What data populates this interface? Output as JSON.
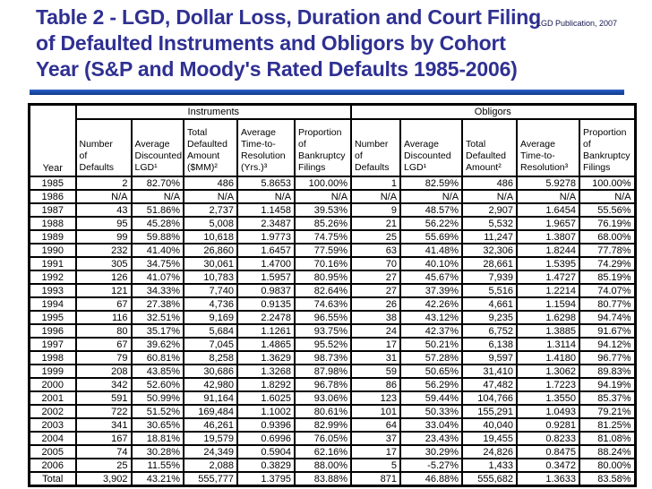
{
  "watermark": "LGD Publication, 2007",
  "title": "Table 2 - LGD, Dollar Loss, Duration and Court Filing\nof Defaulted Instruments and Obligors by Cohort\nYear (S&P and Moody's Rated Defaults 1985-2006)",
  "colors": {
    "title": "#2f3092",
    "accent_bar": "#1b4aa6",
    "table_border": "#000000"
  },
  "table": {
    "year_header": "Year",
    "groups": [
      {
        "label": "Instruments",
        "columns": [
          "Number\nof\nDefaults",
          "Average\nDiscounted\nLGD¹",
          "Total\nDefaulted\nAmount\n($MM)²",
          "Average\nTime-to-\nResolution\n(Yrs.)³",
          "Proportion\nof\nBankruptcy\nFilings"
        ]
      },
      {
        "label": "Obligors",
        "columns": [
          "Number\nof\nDefaults",
          "Average\nDiscounted\nLGD¹",
          "Total\nDefaulted\nAmount²",
          "Average\nTime-to-\nResolution³",
          "Proportion\nof\nBankruptcy\nFilings"
        ]
      }
    ],
    "rows": [
      {
        "year": "1985",
        "instruments": [
          "2",
          "82.70%",
          "486",
          "5.8653",
          "100.00%"
        ],
        "obligors": [
          "1",
          "82.59%",
          "486",
          "5.9278",
          "100.00%"
        ]
      },
      {
        "year": "1986",
        "instruments": [
          "N/A",
          "N/A",
          "N/A",
          "N/A",
          "N/A"
        ],
        "obligors": [
          "N/A",
          "N/A",
          "N/A",
          "N/A",
          "N/A"
        ]
      },
      {
        "year": "1987",
        "instruments": [
          "43",
          "51.86%",
          "2,737",
          "1.1458",
          "39.53%"
        ],
        "obligors": [
          "9",
          "48.57%",
          "2,907",
          "1.6454",
          "55.56%"
        ]
      },
      {
        "year": "1988",
        "instruments": [
          "95",
          "45.28%",
          "5,008",
          "2.3487",
          "85.26%"
        ],
        "obligors": [
          "21",
          "56.22%",
          "5,532",
          "1.9657",
          "76.19%"
        ]
      },
      {
        "year": "1989",
        "instruments": [
          "99",
          "59.88%",
          "10,618",
          "1.9773",
          "74.75%"
        ],
        "obligors": [
          "25",
          "55.69%",
          "11,247",
          "1.3807",
          "68.00%"
        ]
      },
      {
        "year": "1990",
        "instruments": [
          "232",
          "41.40%",
          "26,860",
          "1.6457",
          "77.59%"
        ],
        "obligors": [
          "63",
          "41.48%",
          "32,306",
          "1.8244",
          "77.78%"
        ]
      },
      {
        "year": "1991",
        "instruments": [
          "305",
          "34.75%",
          "30,061",
          "1.4700",
          "70.16%"
        ],
        "obligors": [
          "70",
          "40.10%",
          "28,661",
          "1.5395",
          "74.29%"
        ]
      },
      {
        "year": "1992",
        "instruments": [
          "126",
          "41.07%",
          "10,783",
          "1.5957",
          "80.95%"
        ],
        "obligors": [
          "27",
          "45.67%",
          "7,939",
          "1.4727",
          "85.19%"
        ]
      },
      {
        "year": "1993",
        "instruments": [
          "121",
          "34.33%",
          "7,740",
          "0.9837",
          "82.64%"
        ],
        "obligors": [
          "27",
          "37.39%",
          "5,516",
          "1.2214",
          "74.07%"
        ]
      },
      {
        "year": "1994",
        "instruments": [
          "67",
          "27.38%",
          "4,736",
          "0.9135",
          "74.63%"
        ],
        "obligors": [
          "26",
          "42.26%",
          "4,661",
          "1.1594",
          "80.77%"
        ]
      },
      {
        "year": "1995",
        "instruments": [
          "116",
          "32.51%",
          "9,169",
          "2.2478",
          "96.55%"
        ],
        "obligors": [
          "38",
          "43.12%",
          "9,235",
          "1.6298",
          "94.74%"
        ]
      },
      {
        "year": "1996",
        "instruments": [
          "80",
          "35.17%",
          "5,684",
          "1.1261",
          "93.75%"
        ],
        "obligors": [
          "24",
          "42.37%",
          "6,752",
          "1.3885",
          "91.67%"
        ]
      },
      {
        "year": "1997",
        "instruments": [
          "67",
          "39.62%",
          "7,045",
          "1.4865",
          "95.52%"
        ],
        "obligors": [
          "17",
          "50.21%",
          "6,138",
          "1.3114",
          "94.12%"
        ]
      },
      {
        "year": "1998",
        "instruments": [
          "79",
          "60.81%",
          "8,258",
          "1.3629",
          "98.73%"
        ],
        "obligors": [
          "31",
          "57.28%",
          "9,597",
          "1.4180",
          "96.77%"
        ]
      },
      {
        "year": "1999",
        "instruments": [
          "208",
          "43.85%",
          "30,686",
          "1.3268",
          "87.98%"
        ],
        "obligors": [
          "59",
          "50.65%",
          "31,410",
          "1.3062",
          "89.83%"
        ]
      },
      {
        "year": "2000",
        "instruments": [
          "342",
          "52.60%",
          "42,980",
          "1.8292",
          "96.78%"
        ],
        "obligors": [
          "86",
          "56.29%",
          "47,482",
          "1.7223",
          "94.19%"
        ]
      },
      {
        "year": "2001",
        "instruments": [
          "591",
          "50.99%",
          "91,164",
          "1.6025",
          "93.06%"
        ],
        "obligors": [
          "123",
          "59.44%",
          "104,766",
          "1.3550",
          "85.37%"
        ]
      },
      {
        "year": "2002",
        "instruments": [
          "722",
          "51.52%",
          "169,484",
          "1.1002",
          "80.61%"
        ],
        "obligors": [
          "101",
          "50.33%",
          "155,291",
          "1.0493",
          "79.21%"
        ]
      },
      {
        "year": "2003",
        "instruments": [
          "341",
          "30.65%",
          "46,261",
          "0.9396",
          "82.99%"
        ],
        "obligors": [
          "64",
          "33.04%",
          "40,040",
          "0.9281",
          "81.25%"
        ]
      },
      {
        "year": "2004",
        "instruments": [
          "167",
          "18.81%",
          "19,579",
          "0.6996",
          "76.05%"
        ],
        "obligors": [
          "37",
          "23.43%",
          "19,455",
          "0.8233",
          "81.08%"
        ]
      },
      {
        "year": "2005",
        "instruments": [
          "74",
          "30.28%",
          "24,349",
          "0.5904",
          "62.16%"
        ],
        "obligors": [
          "17",
          "30.29%",
          "24,826",
          "0.8475",
          "88.24%"
        ]
      },
      {
        "year": "2006",
        "instruments": [
          "25",
          "11.55%",
          "2,088",
          "0.3829",
          "88.00%"
        ],
        "obligors": [
          "5",
          "-5.27%",
          "1,433",
          "0.3472",
          "80.00%"
        ]
      },
      {
        "year": "Total",
        "instruments": [
          "3,902",
          "43.21%",
          "555,777",
          "1.3795",
          "83.88%"
        ],
        "obligors": [
          "871",
          "46.88%",
          "555,682",
          "1.3633",
          "83.58%"
        ]
      }
    ]
  }
}
